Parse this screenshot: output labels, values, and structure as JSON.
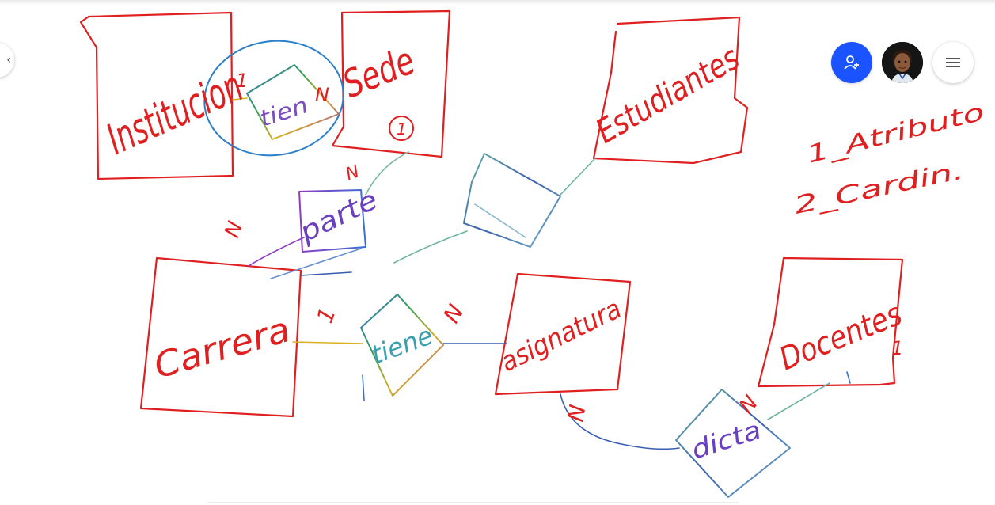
{
  "board": {
    "entities": {
      "institucion": "Institucion",
      "sede": "Sede",
      "estudiantes": "Estudiantes",
      "carrera": "Carrera",
      "asignatura": "asignatura",
      "docentes": "Docentes"
    },
    "relations": {
      "tiene_top": "tien",
      "parte": "parte",
      "tiene_mid": "tiene",
      "dicta": "dicta",
      "blank": ""
    },
    "cardinalities": {
      "inst_sede_1": "1",
      "inst_sede_n": "N",
      "sede_n": "N",
      "parte_n": "N",
      "carrera_1": "1",
      "asig_n": "N",
      "asig_n2": "N",
      "doc_n": "N",
      "sede_mark": "1",
      "doc_mark": "1"
    },
    "notes": {
      "note1": "1_Atributo",
      "note2": "2_Cardin."
    }
  },
  "toolbar": {
    "share_icon": "add-person-icon",
    "avatar": "user-avatar",
    "menu_icon": "hamburger-menu-icon"
  },
  "colors": {
    "ink_red": "#e02020",
    "ink_blue": "#2a7fc9",
    "share_blue": "#1a53ff"
  }
}
